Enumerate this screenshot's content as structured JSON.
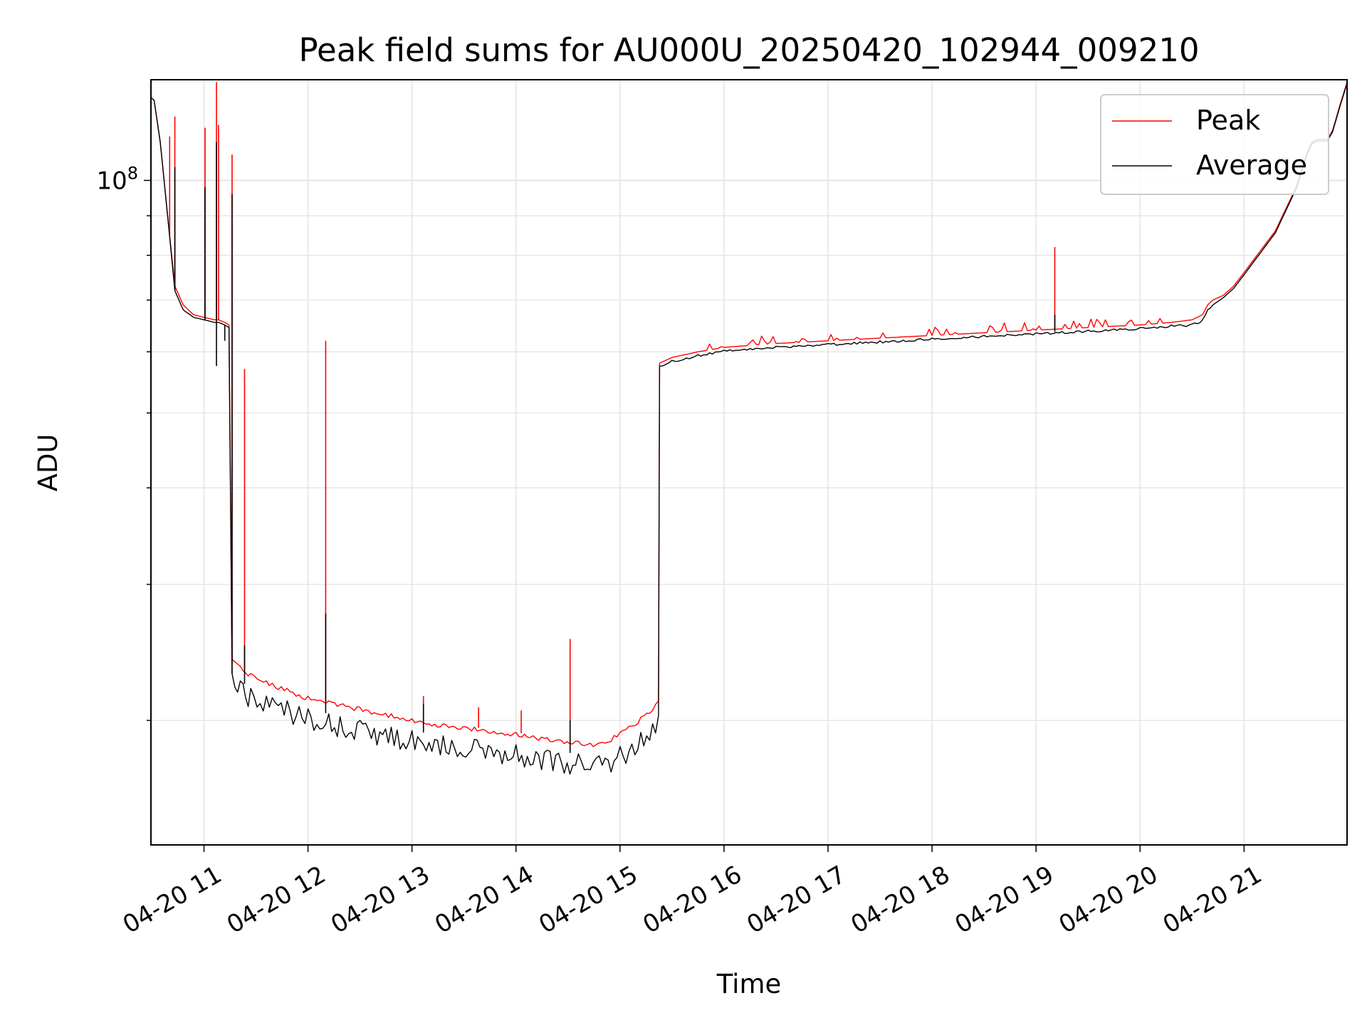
{
  "chart_data": {
    "type": "line",
    "title": "Peak field sums for AU000U_20250420_102944_009210",
    "xlabel": "Time",
    "ylabel": "ADU",
    "yscale": "log",
    "grid": true,
    "legend_position": "top-right",
    "x_tick_labels": [
      "04-20 11",
      "04-20 12",
      "04-20 13",
      "04-20 14",
      "04-20 15",
      "04-20 16",
      "04-20 17",
      "04-20 18",
      "04-20 19",
      "04-20 20",
      "04-20 21"
    ],
    "x_ticks_hours": [
      11,
      12,
      13,
      14,
      15,
      16,
      17,
      18,
      19,
      20,
      21
    ],
    "xlim_hours": [
      10.49,
      21.99
    ],
    "y_major_ticks": [
      {
        "value": 100000000,
        "base": "10",
        "exp": "8"
      }
    ],
    "ylim": [
      13800000,
      135000000
    ],
    "x_hours": [
      10.49,
      10.52,
      10.58,
      10.65,
      10.72,
      10.8,
      10.9,
      11.0,
      11.1,
      11.14,
      11.2,
      11.24,
      11.27,
      11.35,
      11.45,
      11.6,
      11.8,
      12.0,
      12.2,
      12.5,
      12.8,
      13.0,
      13.3,
      13.6,
      14.0,
      14.3,
      14.6,
      14.8,
      15.0,
      15.2,
      15.37,
      15.38,
      15.5,
      15.75,
      16.0,
      16.5,
      17.0,
      17.5,
      18.0,
      18.5,
      19.0,
      19.5,
      20.0,
      20.3,
      20.5,
      20.6,
      20.65,
      20.7,
      20.8,
      20.9,
      21.0,
      21.3,
      21.5,
      21.6,
      21.65,
      21.7,
      21.8,
      21.85,
      21.92,
      21.99
    ],
    "series": [
      {
        "name": "Peak",
        "color": "#ff0000",
        "values": [
          128000000,
          127000000,
          112000000,
          90000000,
          73000000,
          69000000,
          67000000,
          66500000,
          66000000,
          66000000,
          65500000,
          65000000,
          24000000,
          23500000,
          23000000,
          22500000,
          22000000,
          21500000,
          21200000,
          20800000,
          20400000,
          20100000,
          19800000,
          19600000,
          19300000,
          19000000,
          18800000,
          18700000,
          19300000,
          20200000,
          21200000,
          58000000,
          59000000,
          60000000,
          60800000,
          61500000,
          62000000,
          62500000,
          63000000,
          63500000,
          64000000,
          64500000,
          65000000,
          65500000,
          66000000,
          67000000,
          69000000,
          70000000,
          71000000,
          73000000,
          76000000,
          86000000,
          98000000,
          108000000,
          112000000,
          113000000,
          113000000,
          116000000,
          125000000,
          134000000
        ],
        "spikes": [
          {
            "x": 10.67,
            "y": 114000000
          },
          {
            "x": 10.72,
            "y": 121000000
          },
          {
            "x": 11.01,
            "y": 117000000
          },
          {
            "x": 11.12,
            "y": 134000000
          },
          {
            "x": 11.14,
            "y": 118000000
          },
          {
            "x": 11.27,
            "y": 108000000
          },
          {
            "x": 11.39,
            "y": 57000000
          },
          {
            "x": 12.17,
            "y": 62000000
          },
          {
            "x": 13.11,
            "y": 21500000
          },
          {
            "x": 13.64,
            "y": 20800000
          },
          {
            "x": 14.05,
            "y": 20600000
          },
          {
            "x": 14.52,
            "y": 25500000
          },
          {
            "x": 19.18,
            "y": 82000000
          }
        ]
      },
      {
        "name": "Average",
        "color": "#000000",
        "values": [
          128000000,
          127000000,
          112000000,
          90000000,
          72000000,
          68000000,
          66500000,
          66000000,
          65500000,
          65500000,
          65000000,
          64500000,
          23000000,
          22500000,
          22000000,
          21500000,
          21200000,
          20700000,
          20400000,
          20000000,
          19600000,
          19400000,
          19100000,
          18900000,
          18600000,
          18300000,
          18100000,
          18000000,
          18500000,
          19300000,
          20300000,
          57500000,
          58500000,
          59500000,
          60300000,
          61000000,
          61500000,
          62000000,
          62500000,
          63000000,
          63500000,
          64000000,
          64500000,
          65000000,
          65200000,
          66000000,
          68000000,
          69000000,
          70500000,
          72500000,
          75500000,
          85500000,
          97500000,
          107500000,
          111500000,
          112500000,
          112500000,
          115500000,
          124500000,
          133500000
        ],
        "spikes": [
          {
            "x": 10.72,
            "y": 104000000
          },
          {
            "x": 11.01,
            "y": 98000000
          },
          {
            "x": 11.12,
            "y": 112000000
          },
          {
            "x": 11.27,
            "y": 96000000
          },
          {
            "x": 11.39,
            "y": 25000000
          },
          {
            "x": 12.17,
            "y": 27500000
          },
          {
            "x": 13.11,
            "y": 21000000
          },
          {
            "x": 14.52,
            "y": 20000000
          },
          {
            "x": 19.18,
            "y": 67000000
          }
        ],
        "dips": [
          {
            "x": 11.12,
            "y": 57500000
          },
          {
            "x": 11.2,
            "y": 62000000
          }
        ]
      }
    ]
  }
}
